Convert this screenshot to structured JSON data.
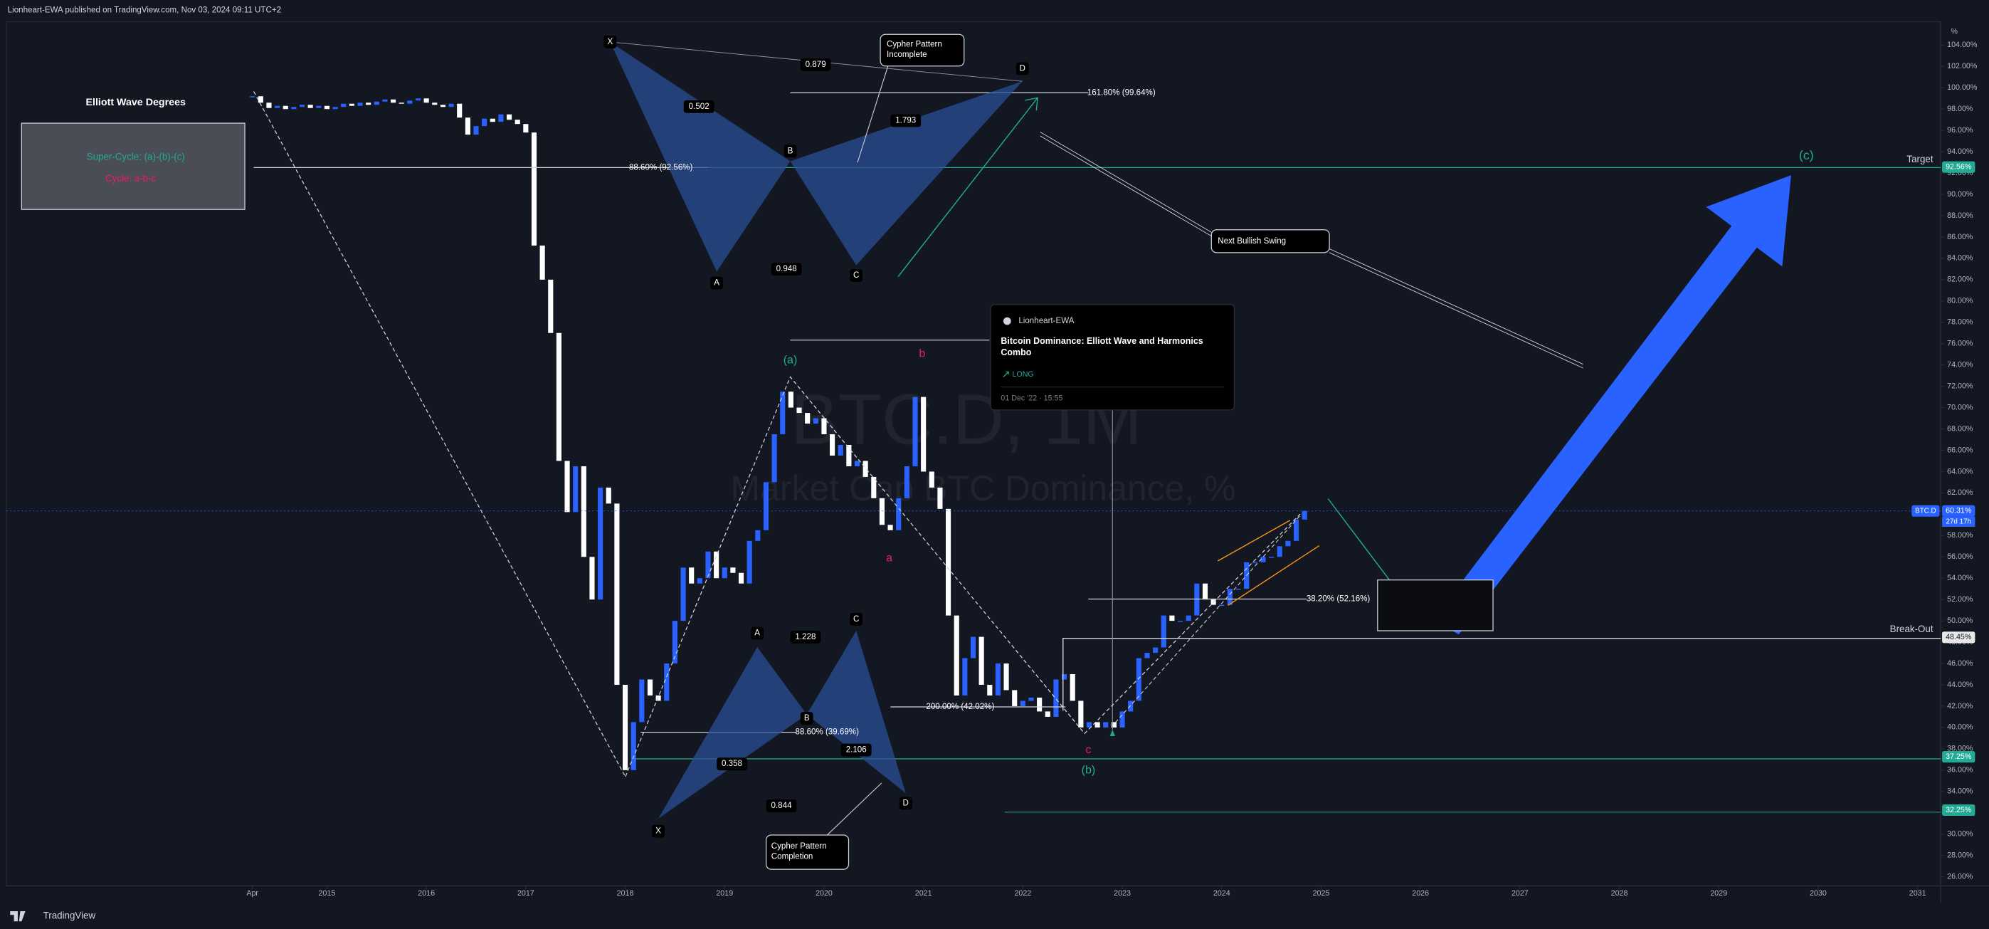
{
  "header": {
    "publisher": "Lionheart-EWA published on TradingView.com, Nov 03, 2024 09:11 UTC+2",
    "brand": "TradingView"
  },
  "chart_data": {
    "type": "candlestick",
    "watermark_symbol": "BTC.D, 1M",
    "watermark_name": "Market Cap BTC Dominance, %",
    "up_color": "#2962ff",
    "down_color": "#ffffff",
    "grid": false,
    "closes": [
      99.2,
      98.6,
      98.1,
      98.3,
      98.0,
      98.2,
      98.4,
      98.1,
      98.3,
      98.0,
      98.2,
      98.5,
      98.3,
      98.6,
      98.4,
      98.7,
      98.9,
      98.6,
      98.5,
      98.8,
      99.0,
      98.6,
      98.4,
      98.2,
      98.5,
      97.2,
      95.6,
      96.4,
      97.1,
      96.8,
      97.5,
      97.0,
      96.6,
      95.8,
      85.2,
      82.0,
      77.0,
      65.0,
      60.2,
      64.5,
      56.0,
      52.0,
      62.5,
      61.0,
      44.0,
      36.0,
      40.5,
      44.5,
      43.0,
      42.5,
      46.0,
      50.0,
      55.0,
      53.5,
      54.0,
      56.5,
      54.0,
      55.0,
      54.5,
      53.5,
      57.5,
      58.5,
      63.0,
      67.5,
      71.5,
      70.0,
      69.5,
      68.5,
      69.0,
      67.5,
      65.5,
      66.5,
      64.5,
      65.0,
      63.5,
      61.5,
      59.0,
      58.5,
      61.5,
      64.5,
      71.0,
      64.0,
      62.5,
      60.5,
      50.5,
      43.0,
      46.5,
      48.5,
      44.0,
      43.0,
      46.0,
      43.5,
      42.0,
      42.5,
      42.8,
      41.5,
      41.0,
      44.5,
      45.0,
      42.5,
      40.0,
      40.5,
      40.0,
      40.5,
      40.0,
      41.5,
      42.5,
      46.5,
      47.0,
      47.5,
      50.5,
      50.0,
      50.0,
      50.5,
      53.5,
      52.0,
      51.5,
      51.5,
      53.0,
      53.0,
      55.5,
      55.5,
      56.0,
      56.0,
      57.0,
      57.5,
      59.5,
      60.31
    ],
    "xlim": [
      -29.7,
      203.8
    ],
    "xticks": [
      {
        "value": 0,
        "label": "Apr"
      },
      {
        "value": 9,
        "label": "2015"
      },
      {
        "value": 21,
        "label": "2016"
      },
      {
        "value": 33,
        "label": "2017"
      },
      {
        "value": 45,
        "label": "2018"
      },
      {
        "value": 57,
        "label": "2019"
      },
      {
        "value": 69,
        "label": "2020"
      },
      {
        "value": 81,
        "label": "2021"
      },
      {
        "value": 93,
        "label": "2022"
      },
      {
        "value": 105,
        "label": "2023"
      },
      {
        "value": 117,
        "label": "2024"
      },
      {
        "value": 129,
        "label": "2025"
      },
      {
        "value": 141,
        "label": "2026"
      },
      {
        "value": 153,
        "label": "2027"
      },
      {
        "value": 165,
        "label": "2028"
      },
      {
        "value": 177,
        "label": "2029"
      },
      {
        "value": 189,
        "label": "2030"
      },
      {
        "value": 201,
        "label": "2031"
      }
    ],
    "ylim": [
      25.15,
      106.2
    ],
    "yticks": [
      {
        "value": 26,
        "label": "26.00%"
      },
      {
        "value": 28,
        "label": "28.00%"
      },
      {
        "value": 30,
        "label": "30.00%"
      },
      {
        "value": 32,
        "label": "32.00%"
      },
      {
        "value": 34,
        "label": "34.00%"
      },
      {
        "value": 36,
        "label": "36.00%"
      },
      {
        "value": 38,
        "label": "38.00%"
      },
      {
        "value": 40,
        "label": "40.00%"
      },
      {
        "value": 42,
        "label": "42.00%"
      },
      {
        "value": 44,
        "label": "44.00%"
      },
      {
        "value": 46,
        "label": "46.00%"
      },
      {
        "value": 48,
        "label": "48.00%"
      },
      {
        "value": 50,
        "label": "50.00%"
      },
      {
        "value": 52,
        "label": "52.00%"
      },
      {
        "value": 54,
        "label": "54.00%"
      },
      {
        "value": 56,
        "label": "56.00%"
      },
      {
        "value": 58,
        "label": "58.00%"
      },
      {
        "value": 60,
        "label": "60.00%"
      },
      {
        "value": 62,
        "label": "62.00%"
      },
      {
        "value": 64,
        "label": "64.00%"
      },
      {
        "value": 66,
        "label": "66.00%"
      },
      {
        "value": 68,
        "label": "68.00%"
      },
      {
        "value": 70,
        "label": "70.00%"
      },
      {
        "value": 72,
        "label": "72.00%"
      },
      {
        "value": 74,
        "label": "74.00%"
      },
      {
        "value": 76,
        "label": "76.00%"
      },
      {
        "value": 78,
        "label": "78.00%"
      },
      {
        "value": 80,
        "label": "80.00%"
      },
      {
        "value": 82,
        "label": "82.00%"
      },
      {
        "value": 84,
        "label": "84.00%"
      },
      {
        "value": 86,
        "label": "86.00%"
      },
      {
        "value": 88,
        "label": "88.00%"
      },
      {
        "value": 90,
        "label": "90.00%"
      },
      {
        "value": 92,
        "label": "92.00%"
      },
      {
        "value": 94,
        "label": "94.00%"
      },
      {
        "value": 96,
        "label": "96.00%"
      },
      {
        "value": 98,
        "label": "98.00%"
      },
      {
        "value": 100,
        "label": "100.00%"
      },
      {
        "value": 102,
        "label": "102.00%"
      },
      {
        "value": 104,
        "label": "104.00%"
      }
    ],
    "price_tags": [
      {
        "value": 92.56,
        "label": "92.56%",
        "color": "#22ab94"
      },
      {
        "value": 60.31,
        "label": "60.31%",
        "color": "#2962ff"
      },
      {
        "value": 48.45,
        "label": "48.45%",
        "color": "#e8e8e8"
      },
      {
        "value": 37.25,
        "label": "37.25%",
        "color": "#22ab94"
      },
      {
        "value": 32.25,
        "label": "32.25%",
        "color": "#22ab94"
      }
    ],
    "symbol_tag": "BTC.D",
    "countdown": "27d 17h",
    "axis_unit": "%"
  },
  "annotations": {
    "legend_title": "Elliott Wave Degrees",
    "super_cycle": "Super-Cycle: (a)-(b)-(c)",
    "cycle": "Cycle: a-b-c",
    "top_pattern": {
      "points": [
        "X",
        "A",
        "B",
        "C",
        "D"
      ],
      "ratios": [
        "0.879",
        "0.502",
        "1.793",
        "0.948"
      ],
      "callout": [
        "Cypher Pattern",
        "Incomplete"
      ]
    },
    "bottom_pattern": {
      "points": [
        "X",
        "A",
        "B",
        "C",
        "D"
      ],
      "ratios": [
        "1.228",
        "0.358",
        "2.106",
        "0.844"
      ],
      "callout": [
        "Cypher Pattern",
        "Completion"
      ]
    },
    "fib_161": "161.80% (99.64%)",
    "fib_886_top": "88.60% (92.56%)",
    "fib_886_bottom": "88.60% (39.69%)",
    "fib_200": "200.00% (42.02%)",
    "fib_382": "38.20% (52.16%)",
    "target": "Target",
    "break_out": "Break-Out",
    "next_swing": "Next Bullish Swing",
    "waves": [
      "(a)",
      "b",
      "a",
      "c",
      "(b)",
      "(c)"
    ],
    "idea": {
      "author": "Lionheart-EWA",
      "title": [
        "Bitcoin Dominance: Elliott Wave and Harmonics",
        "Combo"
      ],
      "direction": "LONG",
      "date": "01 Dec '22 · 15:55"
    }
  }
}
